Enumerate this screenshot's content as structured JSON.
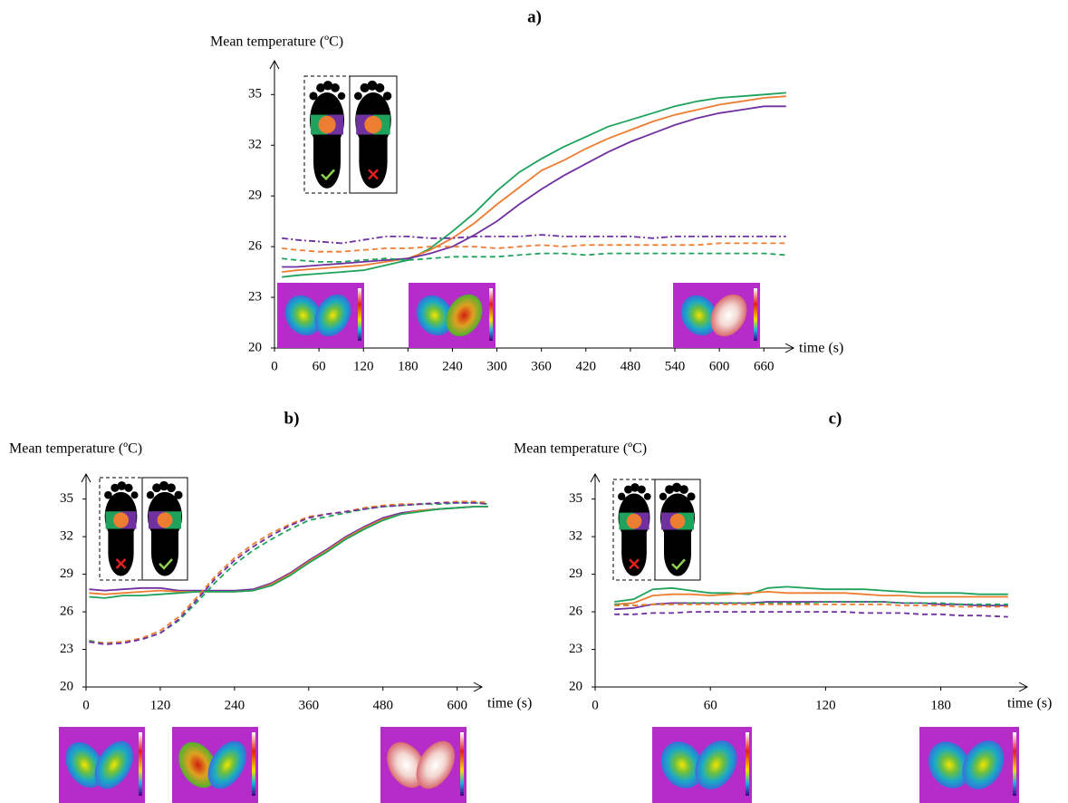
{
  "chart_data": [
    {
      "type": "line",
      "title": "a)",
      "y_label": "Mean temperature (ºC)",
      "x_label": "time (s)",
      "xlim": [
        0,
        700
      ],
      "ylim": [
        20,
        37
      ],
      "xticks": [
        0,
        60,
        120,
        180,
        240,
        300,
        360,
        420,
        480,
        540,
        600,
        660
      ],
      "yticks": [
        20,
        23,
        26,
        29,
        32,
        35
      ],
      "x": [
        10,
        30,
        60,
        90,
        120,
        150,
        180,
        210,
        240,
        270,
        300,
        330,
        360,
        390,
        420,
        450,
        480,
        510,
        540,
        570,
        600,
        630,
        660,
        690
      ],
      "series": [
        {
          "color": "#1fa35c",
          "line_style": "solid",
          "values": [
            24.2,
            24.3,
            24.4,
            24.5,
            24.6,
            24.9,
            25.2,
            25.9,
            26.9,
            28.0,
            29.3,
            30.4,
            31.2,
            31.9,
            32.5,
            33.1,
            33.5,
            33.9,
            34.3,
            34.6,
            34.8,
            34.9,
            35.0,
            35.1
          ]
        },
        {
          "color": "#ed7d31",
          "line_style": "solid",
          "values": [
            24.5,
            24.6,
            24.7,
            24.8,
            24.9,
            25.1,
            25.3,
            25.8,
            26.5,
            27.4,
            28.5,
            29.5,
            30.5,
            31.1,
            31.8,
            32.4,
            32.9,
            33.4,
            33.8,
            34.1,
            34.4,
            34.6,
            34.8,
            34.9
          ]
        },
        {
          "color": "#7030a0",
          "line_style": "solid",
          "values": [
            24.8,
            24.8,
            24.9,
            25.0,
            25.1,
            25.2,
            25.3,
            25.6,
            26.0,
            26.7,
            27.5,
            28.5,
            29.4,
            30.2,
            30.9,
            31.6,
            32.2,
            32.7,
            33.2,
            33.6,
            33.9,
            34.1,
            34.3,
            34.3
          ]
        },
        {
          "color": "#1fa35c",
          "line_style": "dashed",
          "values": [
            25.3,
            25.2,
            25.1,
            25.1,
            25.2,
            25.3,
            25.2,
            25.3,
            25.4,
            25.4,
            25.4,
            25.5,
            25.6,
            25.6,
            25.5,
            25.6,
            25.6,
            25.6,
            25.6,
            25.6,
            25.6,
            25.6,
            25.6,
            25.5
          ]
        },
        {
          "color": "#ed7d31",
          "line_style": "dashed",
          "values": [
            25.9,
            25.8,
            25.7,
            25.7,
            25.8,
            25.9,
            25.9,
            26.0,
            26.0,
            26.0,
            25.9,
            26.0,
            26.1,
            26.0,
            26.1,
            26.1,
            26.1,
            26.1,
            26.1,
            26.1,
            26.2,
            26.2,
            26.2,
            26.2
          ]
        },
        {
          "color": "#7030a0",
          "line_style": "dashdot",
          "values": [
            26.5,
            26.4,
            26.3,
            26.2,
            26.4,
            26.6,
            26.6,
            26.5,
            26.5,
            26.6,
            26.6,
            26.6,
            26.7,
            26.6,
            26.6,
            26.6,
            26.6,
            26.5,
            26.6,
            26.6,
            26.6,
            26.6,
            26.6,
            26.6
          ]
        }
      ]
    },
    {
      "type": "line",
      "title": "b)",
      "y_label": "Mean temperature (ºC)",
      "x_label": "time (s)",
      "xlim": [
        0,
        640
      ],
      "ylim": [
        20,
        37
      ],
      "xticks": [
        0,
        120,
        240,
        360,
        480,
        600
      ],
      "yticks": [
        20,
        23,
        26,
        29,
        32,
        35
      ],
      "x": [
        5,
        30,
        60,
        90,
        120,
        150,
        180,
        210,
        240,
        270,
        300,
        330,
        360,
        390,
        420,
        450,
        480,
        510,
        540,
        570,
        600,
        630,
        650
      ],
      "series": [
        {
          "color": "#7030a0",
          "line_style": "solid",
          "values": [
            27.8,
            27.7,
            27.8,
            27.9,
            27.9,
            27.7,
            27.7,
            27.7,
            27.7,
            27.8,
            28.3,
            29.1,
            30.1,
            31.0,
            32.0,
            32.8,
            33.5,
            33.9,
            34.1,
            34.2,
            34.3,
            34.4,
            34.4
          ]
        },
        {
          "color": "#ed7d31",
          "line_style": "solid",
          "values": [
            27.5,
            27.4,
            27.5,
            27.6,
            27.7,
            27.6,
            27.6,
            27.6,
            27.6,
            27.7,
            28.2,
            29.0,
            30.0,
            30.9,
            31.9,
            32.7,
            33.4,
            33.8,
            34.1,
            34.2,
            34.3,
            34.4,
            34.4
          ]
        },
        {
          "color": "#1fa35c",
          "line_style": "solid",
          "values": [
            27.2,
            27.1,
            27.3,
            27.3,
            27.4,
            27.5,
            27.6,
            27.6,
            27.6,
            27.7,
            28.1,
            28.9,
            29.9,
            30.8,
            31.8,
            32.6,
            33.3,
            33.8,
            34.0,
            34.2,
            34.3,
            34.4,
            34.4
          ]
        },
        {
          "color": "#1fa35c",
          "line_style": "dashed",
          "values": [
            23.7,
            23.5,
            23.6,
            23.8,
            24.3,
            25.3,
            26.8,
            28.4,
            29.8,
            30.9,
            31.8,
            32.6,
            33.3,
            33.6,
            33.9,
            34.2,
            34.4,
            34.5,
            34.6,
            34.6,
            34.7,
            34.7,
            34.6
          ]
        },
        {
          "color": "#ed7d31",
          "line_style": "dashed",
          "values": [
            23.6,
            23.5,
            23.6,
            23.9,
            24.5,
            25.6,
            27.2,
            28.9,
            30.3,
            31.4,
            32.3,
            33.0,
            33.6,
            33.8,
            34.0,
            34.3,
            34.5,
            34.6,
            34.6,
            34.7,
            34.8,
            34.8,
            34.7
          ]
        },
        {
          "color": "#7030a0",
          "line_style": "dashed",
          "values": [
            23.6,
            23.4,
            23.5,
            23.8,
            24.3,
            25.4,
            27.0,
            28.7,
            30.1,
            31.2,
            32.1,
            32.9,
            33.5,
            33.8,
            34.0,
            34.2,
            34.4,
            34.5,
            34.6,
            34.7,
            34.7,
            34.7,
            34.6
          ]
        }
      ]
    },
    {
      "type": "line",
      "title": "c)",
      "y_label": "Mean temperature (ºC)",
      "x_label": "time (s)",
      "xlim": [
        0,
        225
      ],
      "ylim": [
        20,
        37
      ],
      "xticks": [
        0,
        60,
        120,
        180
      ],
      "yticks": [
        20,
        23,
        26,
        29,
        32,
        35
      ],
      "x": [
        10,
        20,
        30,
        40,
        50,
        60,
        70,
        80,
        90,
        100,
        110,
        120,
        130,
        140,
        150,
        160,
        170,
        180,
        190,
        200,
        215
      ],
      "series": [
        {
          "color": "#1fa35c",
          "line_style": "solid",
          "values": [
            26.8,
            27.0,
            27.8,
            27.9,
            27.7,
            27.5,
            27.5,
            27.4,
            27.9,
            28.0,
            27.9,
            27.8,
            27.8,
            27.8,
            27.7,
            27.6,
            27.5,
            27.5,
            27.5,
            27.4,
            27.4
          ]
        },
        {
          "color": "#ed7d31",
          "line_style": "solid",
          "values": [
            26.6,
            26.7,
            27.3,
            27.4,
            27.4,
            27.3,
            27.4,
            27.5,
            27.6,
            27.5,
            27.5,
            27.5,
            27.5,
            27.4,
            27.3,
            27.3,
            27.2,
            27.2,
            27.2,
            27.2,
            27.2
          ]
        },
        {
          "color": "#7030a0",
          "line_style": "solid",
          "values": [
            26.2,
            26.3,
            26.6,
            26.7,
            26.7,
            26.7,
            26.7,
            26.7,
            26.8,
            26.8,
            26.8,
            26.8,
            26.8,
            26.8,
            26.8,
            26.7,
            26.7,
            26.6,
            26.6,
            26.5,
            26.5
          ]
        },
        {
          "color": "#1fa35c",
          "line_style": "dashed",
          "values": [
            26.6,
            26.5,
            26.6,
            26.6,
            26.7,
            26.7,
            26.7,
            26.7,
            26.7,
            26.7,
            26.7,
            26.8,
            26.8,
            26.8,
            26.8,
            26.7,
            26.7,
            26.7,
            26.6,
            26.6,
            26.6
          ]
        },
        {
          "color": "#ed7d31",
          "line_style": "dashed",
          "values": [
            26.5,
            26.5,
            26.6,
            26.6,
            26.6,
            26.6,
            26.6,
            26.6,
            26.6,
            26.6,
            26.6,
            26.6,
            26.6,
            26.6,
            26.6,
            26.5,
            26.5,
            26.5,
            26.4,
            26.4,
            26.4
          ]
        },
        {
          "color": "#7030a0",
          "line_style": "dashed",
          "values": [
            25.8,
            25.8,
            25.9,
            25.9,
            26.0,
            26.0,
            26.0,
            26.0,
            26.0,
            26.0,
            26.0,
            26.0,
            26.0,
            25.9,
            25.9,
            25.9,
            25.8,
            25.8,
            25.7,
            25.7,
            25.6
          ]
        }
      ]
    }
  ]
}
